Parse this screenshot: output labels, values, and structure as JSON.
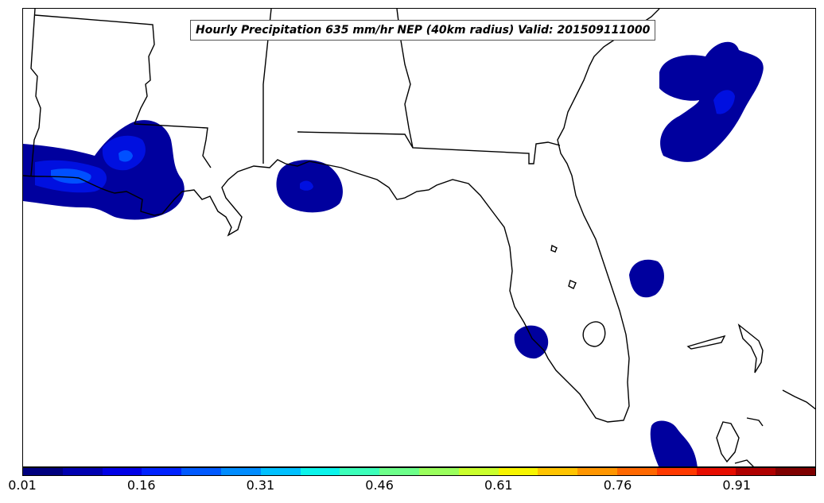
{
  "title": "Hourly Precipitation 635 mm/hr NEP (40km radius) Valid: 201509111000",
  "colorbar": {
    "ticks": [
      "0.01",
      "0.16",
      "0.31",
      "0.46",
      "0.61",
      "0.76",
      "0.91"
    ],
    "colors": [
      "#00007f",
      "#0000b0",
      "#0000e6",
      "#0022ff",
      "#0059ff",
      "#008cff",
      "#00c0ff",
      "#0cf4eb",
      "#3cffba",
      "#6dff8a",
      "#9aff5d",
      "#caff2d",
      "#f7f500",
      "#ffc400",
      "#ff9600",
      "#ff6800",
      "#ff3a00",
      "#e60d00",
      "#af0000",
      "#7f0000"
    ]
  },
  "precip_colors": {
    "low": "#00009e",
    "mid": "#0010e0",
    "high": "#0050ff",
    "peak": "#0080ff"
  }
}
